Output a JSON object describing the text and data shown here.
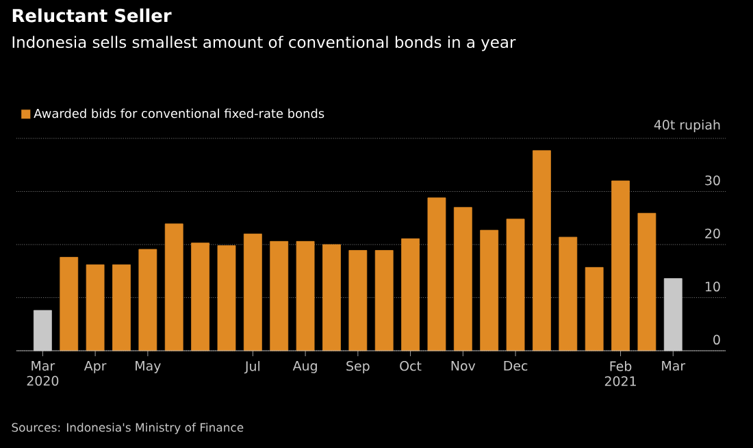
{
  "chart_data": {
    "type": "bar",
    "title": "Reluctant Seller",
    "subtitle": "Indonesia sells smallest amount of conventional bonds in a year",
    "categories": [
      "Mar 2020",
      null,
      "Apr",
      null,
      "May",
      null,
      null,
      null,
      "Jul",
      null,
      "Aug",
      null,
      "Sep",
      null,
      "Oct",
      null,
      "Nov",
      null,
      "Dec",
      null,
      null,
      null,
      "Feb 2021",
      null,
      "Mar"
    ],
    "series": [
      {
        "name": "Awarded bids for conventional fixed-rate bonds",
        "color": "#e08a24",
        "values": [
          7.6,
          17.6,
          16.2,
          16.2,
          19.1,
          23.9,
          20.3,
          19.8,
          22.0,
          20.6,
          20.6,
          20.0,
          18.9,
          18.9,
          21.1,
          28.8,
          27.0,
          22.7,
          24.8,
          37.7,
          21.4,
          15.7,
          32.0,
          25.9,
          13.6
        ],
        "colors": [
          "#c8c8c8",
          "#e08a24",
          "#e08a24",
          "#e08a24",
          "#e08a24",
          "#e08a24",
          "#e08a24",
          "#e08a24",
          "#e08a24",
          "#e08a24",
          "#e08a24",
          "#e08a24",
          "#e08a24",
          "#e08a24",
          "#e08a24",
          "#e08a24",
          "#e08a24",
          "#e08a24",
          "#e08a24",
          "#e08a24",
          "#e08a24",
          "#e08a24",
          "#e08a24",
          "#e08a24",
          "#c8c8c8"
        ]
      }
    ],
    "ylim": [
      0,
      40
    ],
    "yticks": [
      0,
      10,
      20,
      30,
      {
        "value": 40,
        "label": "40t rupiah"
      }
    ],
    "grid": "y",
    "legend": "top left",
    "annotations": [
      "Sources: Indonesia's Ministry of Finance"
    ]
  }
}
